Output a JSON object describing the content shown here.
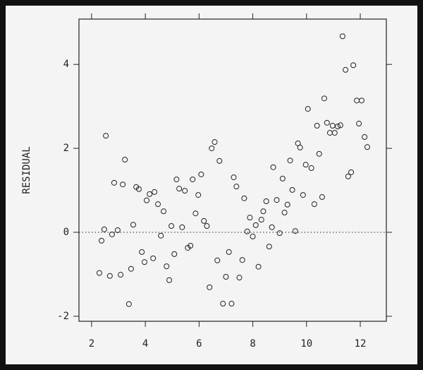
{
  "chart_data": {
    "type": "scatter",
    "y_label": "RESIDUAL",
    "xlim": [
      1.53,
      12.97
    ],
    "ylim": [
      -2.12,
      5.08
    ],
    "xticks": [
      2,
      4,
      6,
      8,
      10,
      12
    ],
    "yticks": [
      -2,
      0,
      2,
      4
    ],
    "hline": 0,
    "color": "#222222",
    "x": [
      2.29,
      2.37,
      2.47,
      2.53,
      2.68,
      2.76,
      2.84,
      2.97,
      3.08,
      3.16,
      3.24,
      3.39,
      3.47,
      3.55,
      3.66,
      3.76,
      3.87,
      3.97,
      4.05,
      4.16,
      4.29,
      4.34,
      4.47,
      4.58,
      4.68,
      4.79,
      4.89,
      4.97,
      5.08,
      5.16,
      5.26,
      5.37,
      5.47,
      5.58,
      5.68,
      5.76,
      5.87,
      5.97,
      6.08,
      6.18,
      6.29,
      6.39,
      6.47,
      6.58,
      6.68,
      6.76,
      6.89,
      7.0,
      7.11,
      7.21,
      7.29,
      7.39,
      7.5,
      7.61,
      7.68,
      7.79,
      7.89,
      8.0,
      8.11,
      8.21,
      8.32,
      8.39,
      8.5,
      8.61,
      8.71,
      8.76,
      8.89,
      9.0,
      9.11,
      9.18,
      9.29,
      9.39,
      9.47,
      9.58,
      9.68,
      9.76,
      9.87,
      9.97,
      10.05,
      10.18,
      10.29,
      10.39,
      10.47,
      10.58,
      10.66,
      10.76,
      10.87,
      10.97,
      11.05,
      11.16,
      11.26,
      11.34,
      11.45,
      11.55,
      11.66,
      11.74,
      11.87,
      11.95,
      12.05,
      12.16,
      12.26
    ],
    "values": [
      -0.97,
      -0.2,
      0.07,
      2.3,
      -1.04,
      -0.05,
      1.18,
      0.05,
      -1.01,
      1.14,
      1.73,
      -1.71,
      -0.87,
      0.18,
      1.08,
      1.03,
      -0.47,
      -0.71,
      0.76,
      0.91,
      -0.62,
      0.96,
      0.67,
      -0.08,
      0.5,
      -0.81,
      -1.14,
      0.15,
      -0.52,
      1.26,
      1.04,
      0.12,
      0.99,
      -0.37,
      -0.32,
      1.26,
      0.45,
      0.89,
      1.38,
      0.27,
      0.15,
      -1.31,
      2.0,
      2.15,
      -0.67,
      1.7,
      -1.7,
      -1.06,
      -0.47,
      -1.7,
      1.31,
      1.09,
      -1.08,
      -0.66,
      0.81,
      0.02,
      0.35,
      -0.1,
      0.17,
      -0.82,
      0.3,
      0.5,
      0.74,
      -0.34,
      0.12,
      1.55,
      0.77,
      -0.02,
      1.28,
      0.47,
      0.66,
      1.71,
      1.01,
      0.03,
      2.12,
      2.02,
      0.89,
      1.61,
      2.94,
      1.53,
      0.67,
      2.54,
      1.87,
      0.84,
      3.19,
      2.61,
      2.37,
      2.54,
      2.37,
      2.52,
      2.55,
      4.67,
      3.87,
      1.33,
      1.43,
      3.98,
      3.14,
      2.59,
      3.14,
      2.27,
      2.03
    ]
  }
}
